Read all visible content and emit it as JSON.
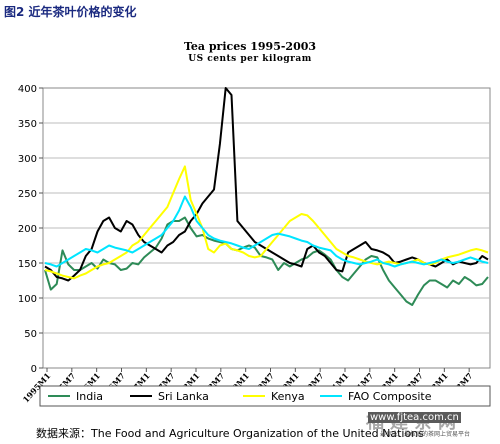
{
  "figure_heading": "图2  近年茶叶价格的变化",
  "source_note": "数据来源：The Food and Agriculture Organization of the United Nations",
  "watermark": {
    "logo_text": "福建茶网",
    "url": "www.fjtea.com.cn",
    "tagline": "最专业、最权威的茶网上贸易平台"
  },
  "chart_data": {
    "type": "line",
    "title": "Tea prices 1995-2003",
    "subtitle": "US cents per kilogram",
    "xlabel": "",
    "ylabel": "",
    "ylim": [
      0,
      400
    ],
    "yticks": [
      0,
      50,
      100,
      150,
      200,
      250,
      300,
      350,
      400
    ],
    "grid": true,
    "legend_position": "bottom",
    "x_tick_labels": [
      "1995M1",
      "1995M7",
      "1996M1",
      "1996M7",
      "1997M1",
      "1997M7",
      "1998M1",
      "1998M7",
      "1999M1",
      "1999M7",
      "2000M1",
      "2000M7",
      "2001M1",
      "2001M7",
      "2002M1",
      "2002M7",
      "2003M1",
      "2003M7"
    ],
    "series": [
      {
        "name": "India",
        "color": "#2e8b57",
        "values": [
          140,
          112,
          120,
          168,
          148,
          140,
          140,
          145,
          150,
          142,
          155,
          150,
          148,
          140,
          142,
          150,
          148,
          158,
          165,
          172,
          185,
          205,
          210,
          210,
          215,
          200,
          188,
          190,
          185,
          182,
          180,
          178,
          170,
          168,
          172,
          175,
          172,
          160,
          158,
          155,
          140,
          150,
          145,
          150,
          155,
          158,
          165,
          168,
          162,
          155,
          140,
          130,
          125,
          135,
          145,
          155,
          160,
          158,
          140,
          125,
          115,
          105,
          95,
          90,
          105,
          118,
          125,
          125,
          120,
          115,
          125,
          120,
          130,
          125,
          118,
          120,
          130
        ]
      },
      {
        "name": "Sri Lanka",
        "color": "#000000",
        "values": [
          145,
          140,
          130,
          128,
          125,
          132,
          140,
          160,
          170,
          195,
          210,
          215,
          200,
          195,
          210,
          205,
          190,
          180,
          175,
          170,
          165,
          175,
          180,
          190,
          195,
          210,
          220,
          235,
          245,
          255,
          320,
          400,
          390,
          210,
          200,
          190,
          180,
          175,
          170,
          165,
          160,
          155,
          150,
          148,
          145,
          170,
          175,
          165,
          160,
          150,
          140,
          138,
          165,
          170,
          175,
          180,
          170,
          168,
          165,
          160,
          150,
          152,
          155,
          158,
          155,
          150,
          148,
          145,
          150,
          155,
          148,
          152,
          150,
          148,
          150,
          160,
          155
        ]
      },
      {
        "name": "Kenya",
        "color": "#ffff00",
        "values": [
          140,
          138,
          135,
          132,
          130,
          128,
          132,
          135,
          140,
          145,
          148,
          150,
          155,
          160,
          165,
          175,
          180,
          190,
          200,
          210,
          220,
          230,
          250,
          270,
          288,
          240,
          220,
          200,
          170,
          165,
          175,
          178,
          170,
          168,
          165,
          160,
          158,
          160,
          170,
          180,
          190,
          200,
          210,
          215,
          220,
          218,
          210,
          200,
          190,
          180,
          170,
          165,
          160,
          158,
          155,
          152,
          150,
          148,
          150,
          152,
          150,
          148,
          150,
          152,
          155,
          150,
          148,
          150,
          155,
          158,
          160,
          162,
          165,
          168,
          170,
          168,
          165
        ]
      },
      {
        "name": "FAO Composite",
        "color": "#00e5ff",
        "values": [
          150,
          148,
          145,
          150,
          155,
          160,
          165,
          170,
          168,
          165,
          170,
          175,
          172,
          170,
          168,
          165,
          170,
          175,
          180,
          185,
          190,
          200,
          210,
          225,
          245,
          230,
          210,
          200,
          190,
          185,
          182,
          180,
          178,
          175,
          172,
          170,
          175,
          180,
          185,
          190,
          192,
          190,
          188,
          185,
          182,
          180,
          175,
          172,
          170,
          168,
          160,
          155,
          152,
          150,
          148,
          150,
          152,
          155,
          150,
          148,
          145,
          148,
          150,
          152,
          150,
          148,
          150,
          152,
          155,
          152,
          150,
          152,
          155,
          158,
          155,
          152,
          150
        ]
      }
    ]
  }
}
